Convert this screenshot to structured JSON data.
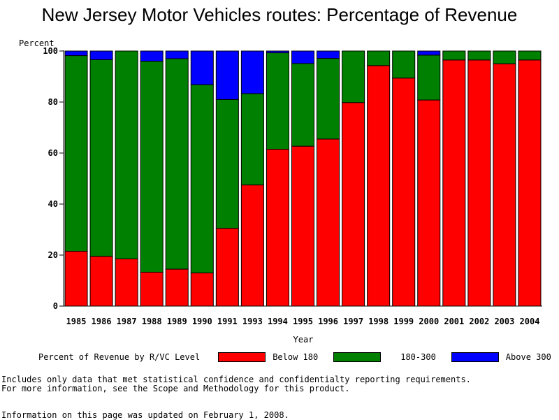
{
  "title": "New Jersey Motor Vehicles routes: Percentage of Revenue",
  "colors": {
    "below": "#ff0000",
    "mid": "#008000",
    "above": "#0000ff"
  },
  "legend": {
    "title": "Percent of Revenue by R/VC Level",
    "items": [
      "Below 180",
      "180-300",
      "Above 300"
    ]
  },
  "footnotes": [
    "Includes only data that met statistical confidence and confidentialty reporting requirements.",
    "For more information, see the Scope and Methodology for this product.",
    "Information on this page was updated on February 1, 2008."
  ],
  "chart_data": {
    "type": "bar",
    "stacked": true,
    "title": "New Jersey Motor Vehicles routes: Percentage of Revenue",
    "xlabel": "Year",
    "ylabel": "Percent",
    "ylim": [
      0,
      100
    ],
    "yticks": [
      0,
      20,
      40,
      60,
      80,
      100
    ],
    "categories": [
      "1985",
      "1986",
      "1987",
      "1988",
      "1989",
      "1990",
      "1991",
      "1993",
      "1994",
      "1995",
      "1996",
      "1997",
      "1998",
      "1999",
      "2000",
      "2001",
      "2002",
      "2003",
      "2004"
    ],
    "series": [
      {
        "name": "Below 180",
        "values": [
          21.5,
          19.5,
          18.5,
          13.3,
          14.5,
          13.0,
          30.5,
          47.5,
          61.5,
          62.7,
          65.5,
          79.8,
          94.3,
          89.4,
          80.8,
          96.5,
          96.5,
          95.0,
          96.5
        ]
      },
      {
        "name": "180-300",
        "values": [
          76.7,
          77.1,
          81.5,
          82.7,
          82.5,
          73.8,
          50.5,
          35.8,
          37.8,
          32.4,
          31.6,
          20.2,
          5.7,
          10.6,
          17.6,
          3.5,
          3.5,
          5.0,
          3.5
        ]
      },
      {
        "name": "Above 300",
        "values": [
          1.8,
          3.4,
          0.0,
          4.0,
          3.0,
          13.2,
          19.0,
          16.7,
          0.7,
          4.9,
          2.9,
          0.0,
          0.0,
          0.0,
          1.6,
          0.0,
          0.0,
          0.0,
          0.0
        ]
      }
    ]
  }
}
